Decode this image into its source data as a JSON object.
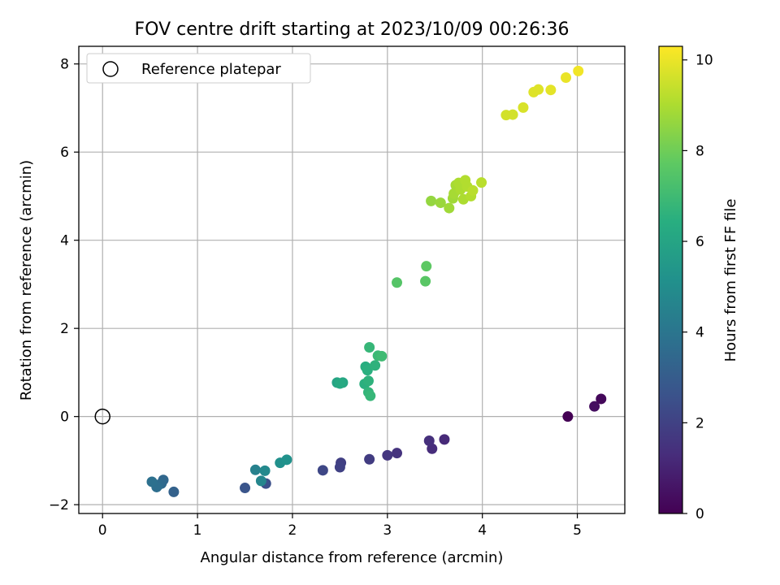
{
  "chart_data": {
    "type": "scatter",
    "title": "FOV centre drift starting at 2023/10/09 00:26:36",
    "xlabel": "Angular distance from reference (arcmin)",
    "ylabel": "Rotation from reference (arcmin)",
    "xlim": [
      -0.25,
      5.5
    ],
    "ylim": [
      -2.2,
      8.4
    ],
    "xticks": [
      0,
      1,
      2,
      3,
      4,
      5
    ],
    "yticks": [
      -2,
      0,
      2,
      4,
      6,
      8
    ],
    "grid": true,
    "legend": {
      "placement": "top-left",
      "entries": [
        "Reference platepar"
      ]
    },
    "reference_point": {
      "x": 0,
      "y": 0
    },
    "colorbar": {
      "label": "Hours from first FF file",
      "range": [
        0,
        10.3
      ],
      "ticks": [
        0,
        2,
        4,
        6,
        8,
        10
      ],
      "colormap": "viridis"
    },
    "points": [
      {
        "x": 4.9,
        "y": 0.0,
        "c": 0.0
      },
      {
        "x": 5.25,
        "y": 0.4,
        "c": 0.2
      },
      {
        "x": 5.18,
        "y": 0.23,
        "c": 0.4
      },
      {
        "x": 3.6,
        "y": -0.52,
        "c": 1.2
      },
      {
        "x": 3.47,
        "y": -0.73,
        "c": 1.3
      },
      {
        "x": 3.44,
        "y": -0.55,
        "c": 1.4
      },
      {
        "x": 3.1,
        "y": -0.83,
        "c": 1.5
      },
      {
        "x": 3.0,
        "y": -0.88,
        "c": 1.6
      },
      {
        "x": 2.81,
        "y": -0.97,
        "c": 1.8
      },
      {
        "x": 2.51,
        "y": -1.05,
        "c": 1.9
      },
      {
        "x": 2.5,
        "y": -1.15,
        "c": 2.0
      },
      {
        "x": 2.32,
        "y": -1.22,
        "c": 2.2
      },
      {
        "x": 1.72,
        "y": -1.52,
        "c": 2.5
      },
      {
        "x": 1.5,
        "y": -1.62,
        "c": 2.7
      },
      {
        "x": 0.75,
        "y": -1.71,
        "c": 3.2
      },
      {
        "x": 0.64,
        "y": -1.44,
        "c": 3.4
      },
      {
        "x": 0.62,
        "y": -1.52,
        "c": 3.5
      },
      {
        "x": 0.59,
        "y": -1.55,
        "c": 3.6
      },
      {
        "x": 0.57,
        "y": -1.6,
        "c": 3.7
      },
      {
        "x": 0.52,
        "y": -1.48,
        "c": 3.8
      },
      {
        "x": 1.61,
        "y": -1.21,
        "c": 4.5
      },
      {
        "x": 1.67,
        "y": -1.46,
        "c": 4.7
      },
      {
        "x": 1.71,
        "y": -1.23,
        "c": 4.8
      },
      {
        "x": 1.87,
        "y": -1.05,
        "c": 5.1
      },
      {
        "x": 1.94,
        "y": -0.98,
        "c": 5.2
      },
      {
        "x": 2.47,
        "y": 0.77,
        "c": 6.0
      },
      {
        "x": 2.53,
        "y": 0.77,
        "c": 6.1
      },
      {
        "x": 2.5,
        "y": 0.75,
        "c": 6.2
      },
      {
        "x": 2.76,
        "y": 0.74,
        "c": 6.5
      },
      {
        "x": 2.8,
        "y": 0.81,
        "c": 6.6
      },
      {
        "x": 2.8,
        "y": 0.55,
        "c": 6.7
      },
      {
        "x": 2.82,
        "y": 0.47,
        "c": 6.8
      },
      {
        "x": 2.77,
        "y": 1.13,
        "c": 6.4
      },
      {
        "x": 2.79,
        "y": 1.05,
        "c": 6.5
      },
      {
        "x": 2.87,
        "y": 1.16,
        "c": 6.6
      },
      {
        "x": 2.81,
        "y": 1.57,
        "c": 6.8
      },
      {
        "x": 2.9,
        "y": 1.38,
        "c": 6.9
      },
      {
        "x": 2.94,
        "y": 1.37,
        "c": 7.0
      },
      {
        "x": 3.1,
        "y": 3.04,
        "c": 7.5
      },
      {
        "x": 3.4,
        "y": 3.07,
        "c": 7.6
      },
      {
        "x": 3.41,
        "y": 3.41,
        "c": 7.7
      },
      {
        "x": 3.46,
        "y": 4.89,
        "c": 8.6
      },
      {
        "x": 3.56,
        "y": 4.85,
        "c": 8.7
      },
      {
        "x": 3.65,
        "y": 4.73,
        "c": 8.8
      },
      {
        "x": 3.69,
        "y": 4.95,
        "c": 8.8
      },
      {
        "x": 3.7,
        "y": 5.06,
        "c": 8.9
      },
      {
        "x": 3.72,
        "y": 5.25,
        "c": 8.9
      },
      {
        "x": 3.75,
        "y": 5.3,
        "c": 9.0
      },
      {
        "x": 3.77,
        "y": 5.15,
        "c": 9.0
      },
      {
        "x": 3.8,
        "y": 4.93,
        "c": 9.0
      },
      {
        "x": 3.82,
        "y": 5.36,
        "c": 9.1
      },
      {
        "x": 3.84,
        "y": 5.22,
        "c": 9.1
      },
      {
        "x": 3.88,
        "y": 5.0,
        "c": 9.1
      },
      {
        "x": 3.9,
        "y": 5.13,
        "c": 9.2
      },
      {
        "x": 3.99,
        "y": 5.31,
        "c": 9.2
      },
      {
        "x": 4.25,
        "y": 6.84,
        "c": 9.6
      },
      {
        "x": 4.32,
        "y": 6.85,
        "c": 9.6
      },
      {
        "x": 4.43,
        "y": 7.01,
        "c": 9.7
      },
      {
        "x": 4.54,
        "y": 7.36,
        "c": 9.8
      },
      {
        "x": 4.59,
        "y": 7.42,
        "c": 9.8
      },
      {
        "x": 4.72,
        "y": 7.41,
        "c": 9.9
      },
      {
        "x": 4.88,
        "y": 7.69,
        "c": 10.0
      },
      {
        "x": 5.01,
        "y": 7.84,
        "c": 10.1
      }
    ]
  }
}
